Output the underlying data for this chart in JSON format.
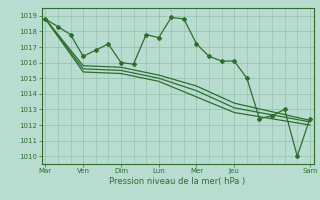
{
  "title": "",
  "xlabel": "Pression niveau de la mer( hPa )",
  "ylim": [
    1009.5,
    1019.5
  ],
  "yticks": [
    1010,
    1011,
    1012,
    1013,
    1014,
    1015,
    1016,
    1017,
    1018,
    1019
  ],
  "day_labels": [
    "Mar",
    "Ven",
    "Dim",
    "Lun",
    "Mer",
    "Jeu",
    "Sam"
  ],
  "day_positions": [
    0,
    3,
    6,
    9,
    12,
    15,
    21
  ],
  "bg_color": "#b8ddd0",
  "grid_color": "#90c0aa",
  "line_color": "#2d6e2d",
  "marker": "D",
  "markersize": 2.0,
  "linewidth": 0.9,
  "series": [
    {
      "x": [
        0,
        1,
        2,
        3,
        4,
        5,
        6,
        7,
        8,
        9,
        10,
        11,
        12,
        13,
        14,
        15,
        16,
        17,
        18,
        19,
        20,
        21
      ],
      "y": [
        1018.8,
        1018.3,
        1017.8,
        1016.4,
        1016.8,
        1017.2,
        1016.0,
        1015.9,
        1017.8,
        1017.6,
        1018.9,
        1018.8,
        1017.2,
        1016.4,
        1016.1,
        1016.1,
        1015.0,
        1012.4,
        1012.6,
        1013.0,
        1010.0,
        1012.4
      ],
      "has_marker": true
    },
    {
      "x": [
        0,
        3,
        6,
        9,
        12,
        15,
        21
      ],
      "y": [
        1018.8,
        1015.8,
        1015.7,
        1015.2,
        1014.5,
        1013.4,
        1012.3
      ],
      "has_marker": false
    },
    {
      "x": [
        0,
        3,
        6,
        9,
        12,
        15,
        21
      ],
      "y": [
        1018.8,
        1015.6,
        1015.5,
        1015.0,
        1014.2,
        1013.1,
        1012.2
      ],
      "has_marker": false
    },
    {
      "x": [
        0,
        3,
        6,
        9,
        12,
        15,
        21
      ],
      "y": [
        1018.8,
        1015.4,
        1015.3,
        1014.8,
        1013.8,
        1012.8,
        1012.0
      ],
      "has_marker": false
    }
  ]
}
